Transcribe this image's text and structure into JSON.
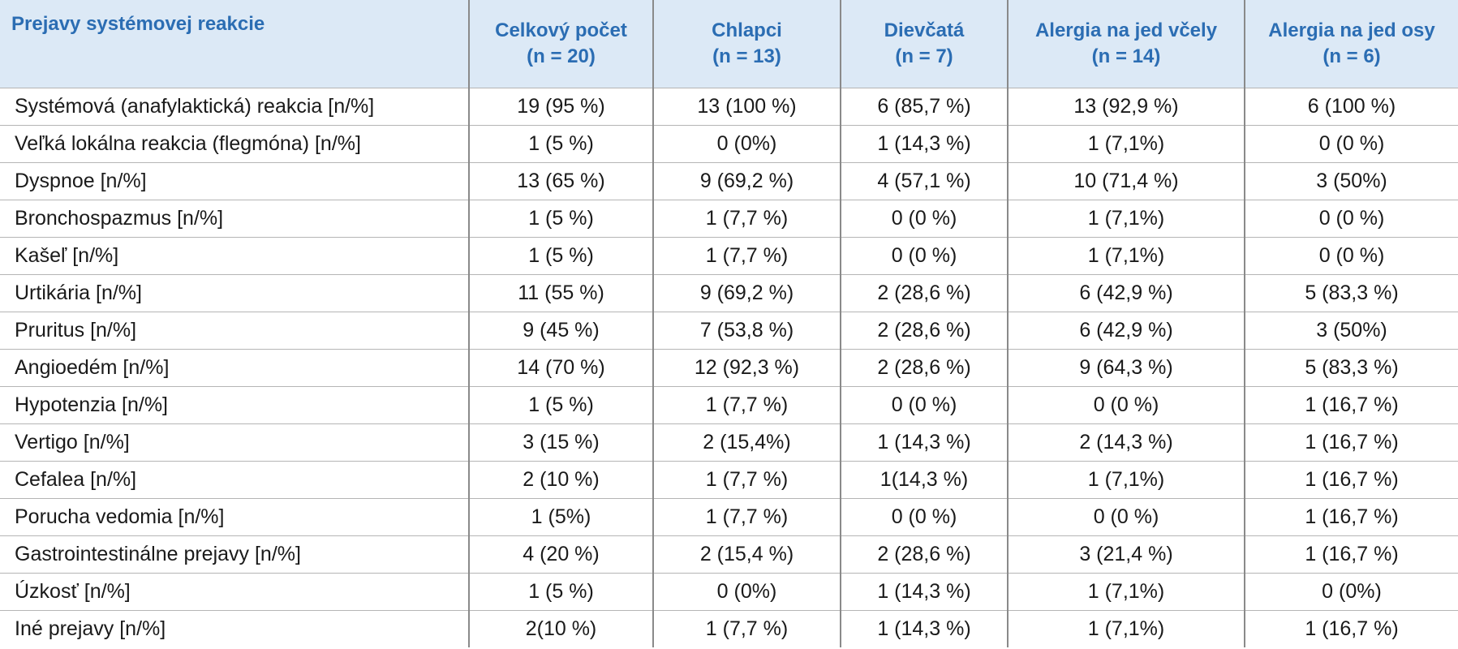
{
  "table": {
    "header": [
      [
        "Prejavy systémovej reakcie"
      ],
      [
        "Celkový počet",
        "(n = 20)"
      ],
      [
        "Chlapci",
        "(n = 13)"
      ],
      [
        "Dievčatá",
        "(n = 7)"
      ],
      [
        "Alergia na jed včely",
        "(n = 14)"
      ],
      [
        "Alergia na jed osy",
        "(n = 6)"
      ]
    ],
    "rows": [
      [
        "Systémová (anafylaktická) reakcia [n/%]",
        "19 (95 %)",
        "13 (100 %)",
        "6 (85,7 %)",
        "13 (92,9 %)",
        "6 (100 %)"
      ],
      [
        "Veľká lokálna reakcia (flegmóna) [n/%]",
        "1 (5 %)",
        "0 (0%)",
        "1 (14,3 %)",
        "1 (7,1%)",
        "0 (0 %)"
      ],
      [
        "Dyspnoe [n/%]",
        "13 (65 %)",
        "9 (69,2 %)",
        "4 (57,1 %)",
        "10 (71,4 %)",
        "3 (50%)"
      ],
      [
        "Bronchospazmus [n/%]",
        "1 (5 %)",
        "1 (7,7 %)",
        "0 (0 %)",
        "1 (7,1%)",
        "0 (0 %)"
      ],
      [
        "Kašeľ [n/%]",
        "1 (5 %)",
        "1 (7,7 %)",
        "0 (0 %)",
        "1 (7,1%)",
        "0 (0 %)"
      ],
      [
        "Urtikária [n/%]",
        "11 (55 %)",
        "9 (69,2 %)",
        "2 (28,6 %)",
        "6 (42,9 %)",
        "5 (83,3 %)"
      ],
      [
        "Pruritus [n/%]",
        "9 (45 %)",
        "7 (53,8 %)",
        "2 (28,6 %)",
        "6 (42,9 %)",
        "3 (50%)"
      ],
      [
        "Angioedém [n/%]",
        "14 (70 %)",
        "12 (92,3 %)",
        "2 (28,6 %)",
        "9 (64,3 %)",
        "5 (83,3 %)"
      ],
      [
        "Hypotenzia [n/%]",
        "1 (5 %)",
        "1 (7,7 %)",
        "0 (0 %)",
        "0 (0 %)",
        "1 (16,7 %)"
      ],
      [
        "Vertigo [n/%]",
        "3 (15 %)",
        "2 (15,4%)",
        "1 (14,3 %)",
        "2 (14,3 %)",
        "1 (16,7 %)"
      ],
      [
        "Cefalea [n/%]",
        "2 (10 %)",
        "1 (7,7 %)",
        "1(14,3 %)",
        "1 (7,1%)",
        "1 (16,7 %)"
      ],
      [
        "Porucha vedomia [n/%]",
        "1 (5%)",
        "1 (7,7 %)",
        "0 (0 %)",
        "0 (0 %)",
        "1 (16,7 %)"
      ],
      [
        "Gastrointestinálne prejavy [n/%]",
        "4 (20 %)",
        "2 (15,4 %)",
        "2 (28,6 %)",
        "3 (21,4 %)",
        "1 (16,7 %)"
      ],
      [
        "Úzkosť [n/%]",
        "1 (5 %)",
        "0 (0%)",
        "1 (14,3 %)",
        "1 (7,1%)",
        "0 (0%)"
      ],
      [
        "Iné prejavy [n/%]",
        "2(10 %)",
        "1 (7,7 %)",
        "1 (14,3 %)",
        "1 (7,1%)",
        "1 (16,7 %)"
      ]
    ]
  }
}
